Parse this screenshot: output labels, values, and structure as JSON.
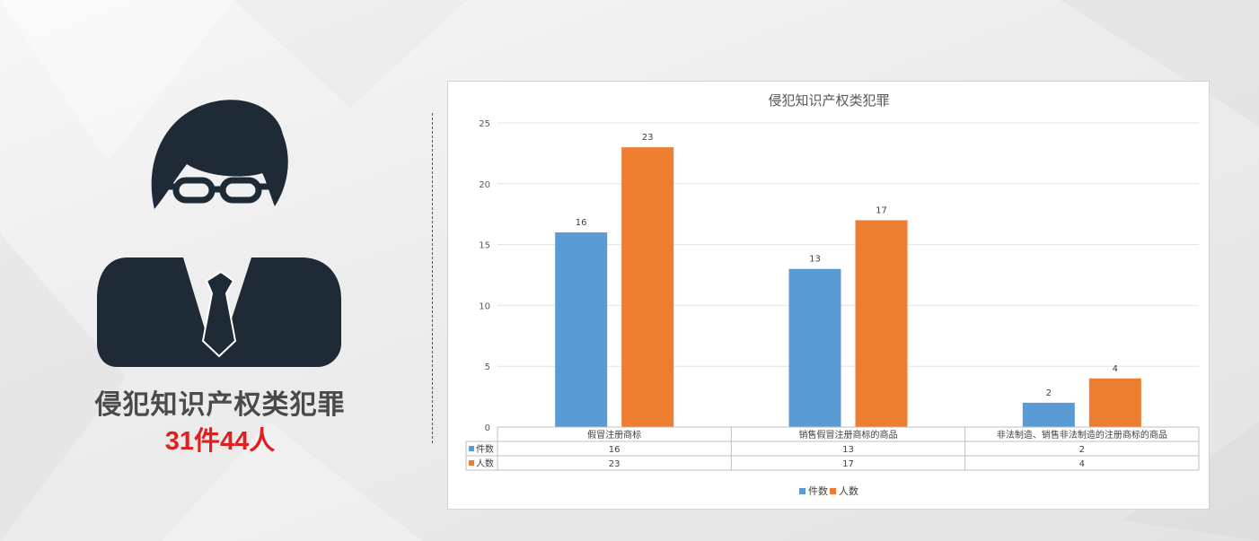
{
  "left_panel": {
    "title": "侵犯知识产权类犯罪",
    "count": "31件44人"
  },
  "colors": {
    "avatar": "#1e2a36",
    "count_red": "#e02020",
    "series_cases": "#5b9bd5",
    "series_people": "#ed7d31"
  },
  "chart_data": {
    "type": "bar",
    "title": "侵犯知识产权类犯罪",
    "categories": [
      "假冒注册商标",
      "销售假冒注册商标的商品",
      "非法制造、销售非法制造的注册商标的商品"
    ],
    "series": [
      {
        "name": "件数",
        "values": [
          16,
          13,
          2
        ],
        "color": "#5b9bd5"
      },
      {
        "name": "人数",
        "values": [
          23,
          17,
          4
        ],
        "color": "#ed7d31"
      }
    ],
    "ylim": [
      0,
      25
    ],
    "yticks": [
      0,
      5,
      10,
      15,
      20,
      25
    ],
    "grid": true,
    "data_labels": true,
    "data_table": true,
    "legend": "bottom"
  }
}
